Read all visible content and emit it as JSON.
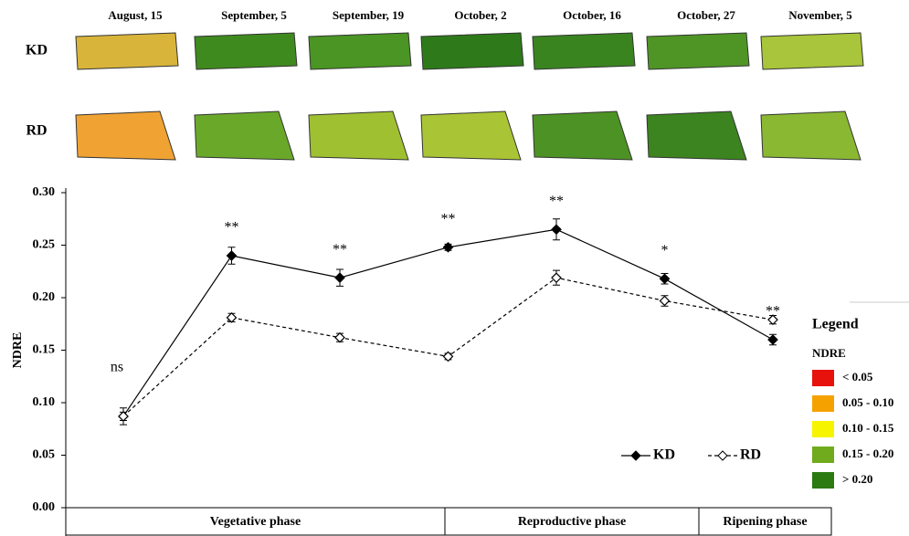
{
  "chart_data": {
    "type": "line",
    "categories": [
      "August, 15",
      "September, 5",
      "September, 19",
      "October, 2",
      "October, 16",
      "October, 27",
      "November, 5"
    ],
    "y_label": "NDRE",
    "ylim": [
      0,
      0.3
    ],
    "yticks": [
      {
        "value": 0,
        "label": "0.00"
      },
      {
        "value": 0.05,
        "label": "0.05"
      },
      {
        "value": 0.1,
        "label": "0.10"
      },
      {
        "value": 0.15,
        "label": "0.15"
      },
      {
        "value": 0.2,
        "label": "0.20"
      },
      {
        "value": 0.25,
        "label": "0.25"
      },
      {
        "value": 0.3,
        "label": "0.30"
      }
    ],
    "series": [
      {
        "name": "KD",
        "color": "#000000",
        "marker": "filled",
        "dash": "solid",
        "values": [
          0.087,
          0.24,
          0.219,
          0.248,
          0.265,
          0.218,
          0.16
        ],
        "errors": [
          0.008,
          0.008,
          0.008,
          0.003,
          0.01,
          0.005,
          0.005
        ]
      },
      {
        "name": "RD",
        "color": "#000000",
        "marker": "open",
        "dash": "dashed",
        "values": [
          0.087,
          0.181,
          0.162,
          0.144,
          0.219,
          0.197,
          0.179
        ],
        "errors": [
          0.004,
          0.004,
          0.004,
          0.003,
          0.007,
          0.005,
          0.004
        ]
      }
    ],
    "significance": [
      "ns",
      "**",
      "**",
      "**",
      "**",
      "*",
      "**"
    ],
    "phases": [
      "Vegetative phase",
      "Reproductive phase",
      "Ripening phase"
    ],
    "map_legend": {
      "title": "Legend",
      "subtitle": "NDRE",
      "classes": [
        {
          "label": "< 0.05",
          "color": "#e8120c"
        },
        {
          "label": "0.05 - 0.10",
          "color": "#f5a200"
        },
        {
          "label": "0.10 - 0.15",
          "color": "#f7f400"
        },
        {
          "label": "0.15 - 0.20",
          "color": "#6fab1c"
        },
        {
          "label": "> 0.20",
          "color": "#2b7a12"
        }
      ]
    }
  }
}
